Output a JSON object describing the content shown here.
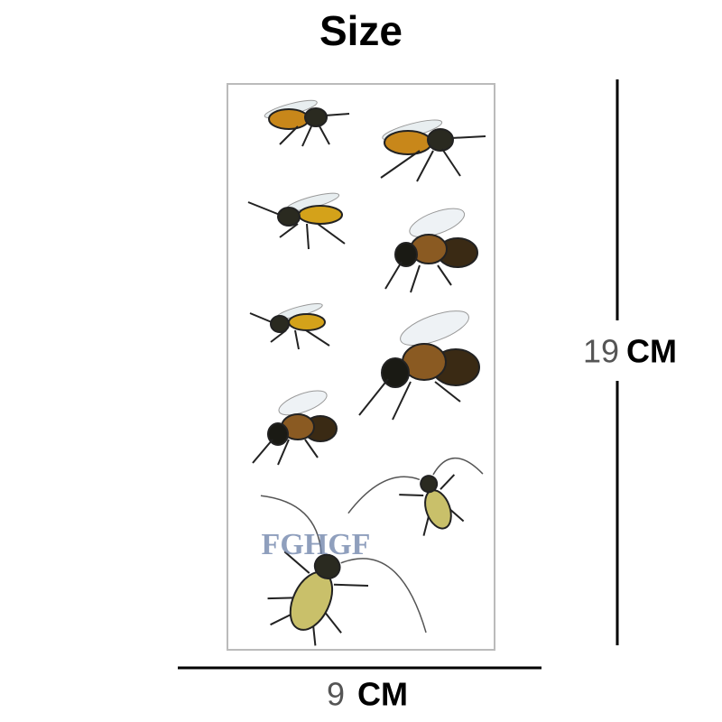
{
  "title": "Size",
  "watermark": "FGHGF",
  "height": {
    "value": "19",
    "unit": "CM"
  },
  "width": {
    "value": "9",
    "unit": "CM"
  }
}
